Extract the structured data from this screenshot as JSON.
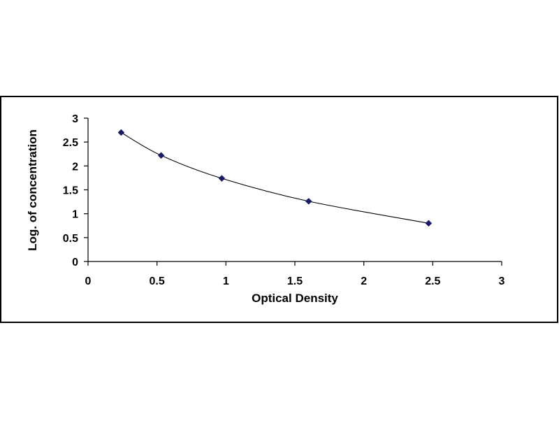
{
  "chart_data": {
    "type": "scatter",
    "title": "",
    "xlabel": "Optical Density",
    "ylabel": "Log. of concentration",
    "xlim": [
      0,
      3
    ],
    "ylim": [
      0,
      3
    ],
    "x_ticks": [
      "0",
      "0.5",
      "1",
      "1.5",
      "2",
      "2.5",
      "3"
    ],
    "y_ticks": [
      "0",
      "0.5",
      "1",
      "1.5",
      "2",
      "2.5",
      "3"
    ],
    "grid": false,
    "legend": "none",
    "trendline": "smooth curve through points",
    "marker": "diamond",
    "marker_color": "#1a1a66",
    "series": [
      {
        "x": [
          0.24,
          0.53,
          0.97,
          1.6,
          2.47
        ],
        "y": [
          2.7,
          2.22,
          1.74,
          1.26,
          0.8
        ]
      }
    ]
  }
}
